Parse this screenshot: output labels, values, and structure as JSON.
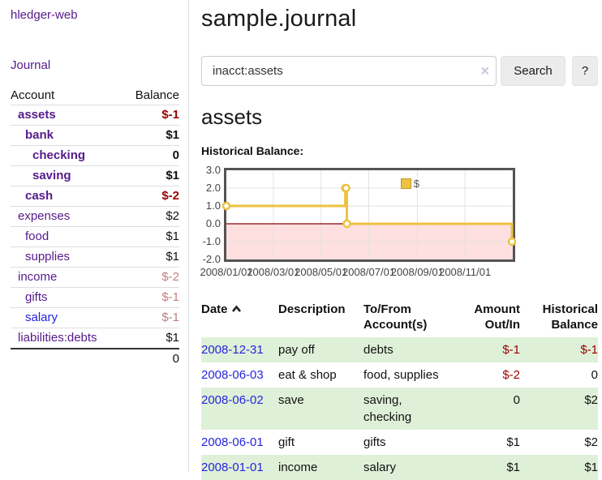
{
  "app": {
    "brand": "hledger-web",
    "nav_journal": "Journal"
  },
  "sidebar": {
    "accounts_table": {
      "headers": {
        "account": "Account",
        "balance": "Balance"
      },
      "rows": [
        {
          "name": "assets",
          "balance": "$-1",
          "level": 1,
          "bold": true,
          "tone": "neg"
        },
        {
          "name": "bank",
          "balance": "$1",
          "level": 2,
          "bold": true,
          "tone": "normal"
        },
        {
          "name": "checking",
          "balance": "0",
          "level": 3,
          "bold": true,
          "tone": "normal"
        },
        {
          "name": "saving",
          "balance": "$1",
          "level": 3,
          "bold": true,
          "tone": "normal"
        },
        {
          "name": "cash",
          "balance": "$-2",
          "level": 2,
          "bold": true,
          "tone": "neg"
        },
        {
          "name": "expenses",
          "balance": "$2",
          "level": 1,
          "bold": false,
          "tone": "normal"
        },
        {
          "name": "food",
          "balance": "$1",
          "level": 2,
          "bold": false,
          "tone": "normal"
        },
        {
          "name": "supplies",
          "balance": "$1",
          "level": 2,
          "bold": false,
          "tone": "normal"
        },
        {
          "name": "income",
          "balance": "$-2",
          "level": 1,
          "bold": false,
          "tone": "softneg"
        },
        {
          "name": "gifts",
          "balance": "$-1",
          "level": 2,
          "bold": false,
          "tone": "softneg"
        },
        {
          "name": "salary",
          "balance": "$-1",
          "level": 2,
          "bold": false,
          "tone": "softneg",
          "link_color": "blue"
        },
        {
          "name": "liabilities:debts",
          "balance": "$1",
          "level": 1,
          "bold": false,
          "tone": "normal"
        }
      ],
      "total": "0"
    }
  },
  "main": {
    "title": "sample.journal",
    "search": {
      "value": "inacct:assets",
      "clear_icon": "×",
      "button": "Search",
      "help_button": "?"
    },
    "account_heading": "assets",
    "chart_label": "Historical Balance:"
  },
  "chart_data": {
    "type": "line",
    "step": true,
    "title": "Historical Balance of assets",
    "series": [
      {
        "name": "$",
        "color": "#EDC240",
        "points": [
          [
            "2008-01-01",
            1
          ],
          [
            "2008-06-01",
            2
          ],
          [
            "2008-06-02",
            2
          ],
          [
            "2008-06-03",
            0
          ],
          [
            "2008-12-31",
            -1
          ]
        ]
      }
    ],
    "x_range": [
      "2008-01-01",
      "2009-01-01"
    ],
    "x_ticks": [
      "2008/01/01",
      "2008/03/01",
      "2008/05/01",
      "2008/07/01",
      "2008/09/01",
      "2008/11/01"
    ],
    "y_ticks": [
      3.0,
      2.0,
      1.0,
      0.0,
      -1.0,
      -2.0
    ],
    "y_tick_labels": [
      "3.0",
      "2.0",
      "1.0",
      "0.0",
      "-1.0",
      "-2.0"
    ],
    "ylim": [
      -2,
      3
    ],
    "grid": true,
    "legend_position": "top-right",
    "negative_region_color": "rgba(255,0,0,0.12)",
    "zero_line_color": "#8b0000"
  },
  "register": {
    "headers": {
      "date": "Date",
      "description": "Description",
      "accounts": "To/From Account(s)",
      "amount": "Amount Out/In",
      "balance": "Historical Balance"
    },
    "rows": [
      {
        "date": "2008-12-31",
        "description": "pay off",
        "accounts": "debts",
        "amount": "$-1",
        "balance": "$-1",
        "amount_neg": true,
        "balance_neg": true
      },
      {
        "date": "2008-06-03",
        "description": "eat & shop",
        "accounts": "food, supplies",
        "amount": "$-2",
        "balance": "0",
        "amount_neg": true,
        "balance_neg": false
      },
      {
        "date": "2008-06-02",
        "description": "save",
        "accounts": "saving, checking",
        "amount": "0",
        "balance": "$2",
        "amount_neg": false,
        "balance_neg": false
      },
      {
        "date": "2008-06-01",
        "description": "gift",
        "accounts": "gifts",
        "amount": "$1",
        "balance": "$2",
        "amount_neg": false,
        "balance_neg": false
      },
      {
        "date": "2008-01-01",
        "description": "income",
        "accounts": "salary",
        "amount": "$1",
        "balance": "$1",
        "amount_neg": false,
        "balance_neg": false
      }
    ]
  },
  "colors": {
    "link_purple": "#551A8B",
    "link_blue": "#2424dd",
    "negative": "#990000",
    "soft_negative": "#c07f7f",
    "row_green": "#dff0d8",
    "series_yellow": "#EDC240",
    "zero_line": "#8b0000",
    "chart_border": "#545454",
    "gridline": "#e2e2e2",
    "button_bg": "#ececec",
    "divider": "#dddddd"
  }
}
